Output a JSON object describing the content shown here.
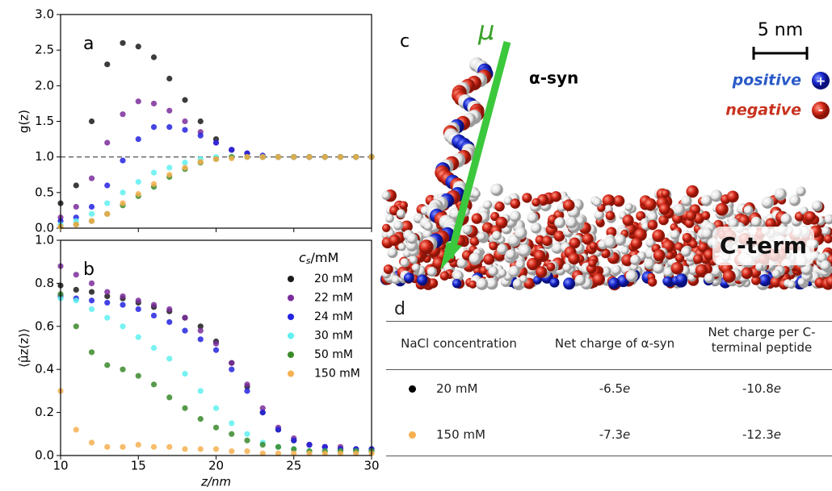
{
  "chart_data": [
    {
      "type": "scatter",
      "panel": "a",
      "ylabel": "g(z)",
      "x": [
        10,
        11,
        12,
        13,
        14,
        15,
        16,
        17,
        18,
        19,
        20,
        21,
        22,
        23,
        24,
        25,
        26,
        27,
        28,
        29,
        30
      ],
      "xlim": [
        10,
        30
      ],
      "xticks": [
        10,
        15,
        20,
        25,
        30
      ],
      "xticklabels": false,
      "ylim": [
        0,
        3
      ],
      "yticks": [
        {
          "value": 0,
          "label": "0.0"
        },
        {
          "value": 0.5,
          "label": "0.5"
        },
        {
          "value": 1,
          "label": "1.0"
        },
        {
          "value": 1.5,
          "label": "1.5"
        },
        {
          "value": 2,
          "label": "2.0"
        },
        {
          "value": 2.5,
          "label": "2.5"
        },
        {
          "value": 3,
          "label": "3.0"
        }
      ],
      "hline": 1,
      "series": [
        {
          "name": "20 mM",
          "color": "#1a1a1a",
          "values": [
            0.35,
            0.6,
            1.5,
            2.3,
            2.6,
            2.55,
            2.4,
            2.1,
            1.8,
            1.5,
            1.25,
            1.1,
            1.05,
            1.0,
            1.0,
            1.0,
            1.0,
            1.0,
            1.0,
            1.0,
            1.0
          ]
        },
        {
          "name": "22 mM",
          "color": "#7b2d9b",
          "values": [
            0.15,
            0.3,
            0.7,
            1.2,
            1.6,
            1.78,
            1.75,
            1.65,
            1.5,
            1.35,
            1.2,
            1.1,
            1.05,
            1.0,
            1.0,
            1.0,
            1.0,
            1.0,
            1.0,
            1.0,
            1.0
          ]
        },
        {
          "name": "24 mM",
          "color": "#2323e0",
          "values": [
            0.1,
            0.15,
            0.3,
            0.6,
            0.95,
            1.25,
            1.42,
            1.42,
            1.38,
            1.3,
            1.2,
            1.1,
            1.05,
            1.02,
            1.0,
            1.0,
            1.0,
            1.0,
            1.0,
            1.0,
            1.0
          ]
        },
        {
          "name": "30 mM",
          "color": "#5ff0f0",
          "values": [
            0.05,
            0.1,
            0.2,
            0.35,
            0.5,
            0.65,
            0.78,
            0.85,
            0.92,
            0.97,
            1.0,
            1.0,
            1.0,
            1.0,
            1.0,
            1.0,
            1.0,
            1.0,
            1.0,
            1.0,
            1.0
          ]
        },
        {
          "name": "50 mM",
          "color": "#3a8a2a",
          "values": [
            0.02,
            0.05,
            0.1,
            0.2,
            0.32,
            0.45,
            0.58,
            0.72,
            0.83,
            0.92,
            0.97,
            1.0,
            1.0,
            1.0,
            1.0,
            1.0,
            1.0,
            1.0,
            1.0,
            1.0,
            1.0
          ]
        },
        {
          "name": "150 mM",
          "color": "#f5b050",
          "values": [
            0.02,
            0.05,
            0.1,
            0.2,
            0.35,
            0.48,
            0.62,
            0.75,
            0.85,
            0.93,
            0.97,
            0.98,
            1.0,
            1.0,
            1.0,
            1.0,
            1.0,
            1.0,
            1.0,
            1.0,
            1.0
          ]
        }
      ]
    },
    {
      "type": "scatter",
      "panel": "b",
      "ylabel": "⟨μ̂z(z)⟩",
      "xlabel": "z/nm",
      "x": [
        10,
        11,
        12,
        13,
        14,
        15,
        16,
        17,
        18,
        19,
        20,
        21,
        22,
        23,
        24,
        25,
        26,
        27,
        28,
        29,
        30
      ],
      "xlim": [
        10,
        30
      ],
      "xticks": [
        10,
        15,
        20,
        25,
        30
      ],
      "ylim": [
        0,
        1
      ],
      "yticks": [
        {
          "value": 0,
          "label": "0.0"
        },
        {
          "value": 0.2,
          "label": "0.2"
        },
        {
          "value": 0.4,
          "label": "0.4"
        },
        {
          "value": 0.6,
          "label": "0.6"
        },
        {
          "value": 0.8,
          "label": "0.8"
        },
        {
          "value": 1,
          "label": "1.0"
        }
      ],
      "legend": "upper right",
      "legend_title": {
        "main": "c",
        "sub": "s",
        "rest": "/mM"
      },
      "series": [
        {
          "name": "20 mM",
          "color": "#1a1a1a",
          "values": [
            0.79,
            0.77,
            0.76,
            0.74,
            0.73,
            0.71,
            0.69,
            0.67,
            0.64,
            0.6,
            0.53,
            0.43,
            0.32,
            0.2,
            0.12,
            0.07,
            0.05,
            0.04,
            0.03,
            0.03,
            0.03
          ]
        },
        {
          "name": "22 mM",
          "color": "#7b2d9b",
          "values": [
            0.88,
            0.84,
            0.8,
            0.76,
            0.74,
            0.72,
            0.7,
            0.68,
            0.64,
            0.58,
            0.52,
            0.43,
            0.33,
            0.22,
            0.13,
            0.08,
            0.05,
            0.04,
            0.04,
            0.03,
            0.03
          ]
        },
        {
          "name": "24 mM",
          "color": "#2323e0",
          "values": [
            0.74,
            0.73,
            0.72,
            0.71,
            0.7,
            0.68,
            0.65,
            0.62,
            0.58,
            0.54,
            0.49,
            0.4,
            0.3,
            0.2,
            0.12,
            0.07,
            0.05,
            0.04,
            0.03,
            0.03,
            0.03
          ]
        },
        {
          "name": "30 mM",
          "color": "#5ff0f0",
          "values": [
            0.73,
            0.72,
            0.68,
            0.64,
            0.6,
            0.55,
            0.5,
            0.45,
            0.38,
            0.3,
            0.22,
            0.15,
            0.1,
            0.06,
            0.04,
            0.03,
            0.02,
            0.02,
            0.02,
            0.02,
            0.02
          ]
        },
        {
          "name": "50 mM",
          "color": "#3a8a2a",
          "values": [
            0.75,
            0.6,
            0.48,
            0.42,
            0.4,
            0.37,
            0.33,
            0.27,
            0.22,
            0.17,
            0.13,
            0.1,
            0.07,
            0.05,
            0.04,
            0.03,
            0.02,
            0.02,
            0.02,
            0.02,
            0.02
          ]
        },
        {
          "name": "150 mM",
          "color": "#f5b050",
          "values": [
            0.3,
            0.12,
            0.06,
            0.04,
            0.04,
            0.05,
            0.04,
            0.04,
            0.03,
            0.03,
            0.03,
            0.02,
            0.02,
            0.01,
            0.01,
            0.01,
            0.01,
            0.01,
            0.01,
            0.01,
            0.01
          ]
        }
      ]
    }
  ],
  "image_panel": {
    "label": "c",
    "arrow_label": "μ",
    "protein": "α-syn",
    "scale": "5 nm",
    "positive": "positive",
    "positive_sign": "+",
    "negative": "negative",
    "negative_sign": "-",
    "region": "C-term"
  },
  "table": {
    "label": "d",
    "headers": [
      "NaCl concentration",
      "Net charge of α-syn",
      "Net charge per C-terminal peptide"
    ],
    "rows": [
      {
        "color": "#000000",
        "concentration": "20 mM",
        "alpha_syn": {
          "number": "-6.5",
          "unit": "e"
        },
        "cterm": {
          "number": "-10.8",
          "unit": "e"
        }
      },
      {
        "color": "#f5b050",
        "concentration": "150 mM",
        "alpha_syn": {
          "number": "-7.3",
          "unit": "e"
        },
        "cterm": {
          "number": "-12.3",
          "unit": "e"
        }
      }
    ]
  }
}
